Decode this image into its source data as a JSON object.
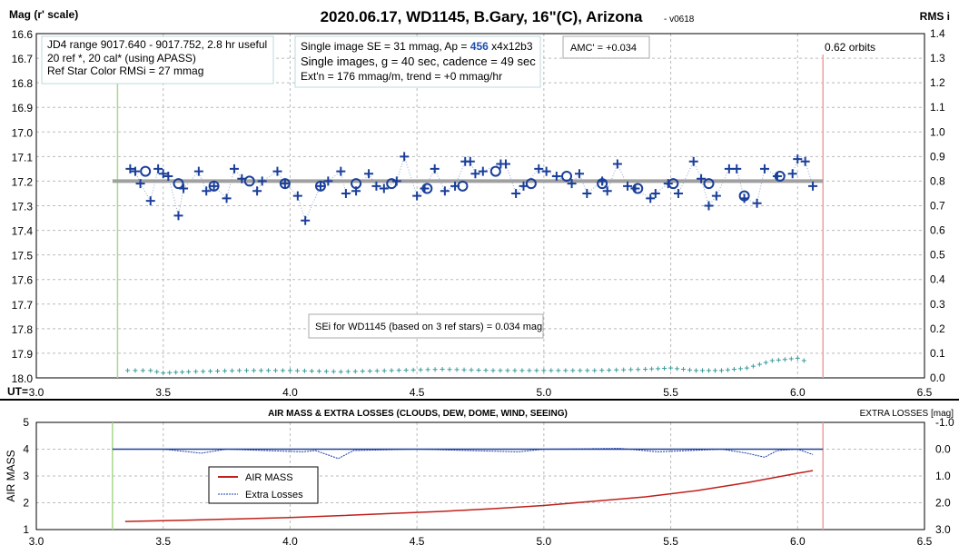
{
  "chart_data": [
    {
      "type": "scatter",
      "title": "2020.06.17, WD1145, B.Gary, 16\"(C), Arizona",
      "version": "- v0618",
      "ylabel": "Mag (r' scale)",
      "y2label": "RMS i",
      "xlabel": "UT=",
      "xlim": [
        3.0,
        6.5
      ],
      "ylim": [
        16.6,
        18.0
      ],
      "y2lim": [
        0,
        1.4
      ],
      "xticks": [
        "3.0",
        "3.5",
        "4.0",
        "4.5",
        "5.0",
        "5.5",
        "6.0",
        "6.5"
      ],
      "yticks": [
        "16.6",
        "16.7",
        "16.8",
        "16.9",
        "17.0",
        "17.1",
        "17.2",
        "17.3",
        "17.4",
        "17.5",
        "17.6",
        "17.7",
        "17.8",
        "17.9",
        "18.0"
      ],
      "y2ticks": [
        "1.4",
        "1.3",
        "1.2",
        "1.1",
        "1.0",
        "0.9",
        "0.8",
        "0.7",
        "0.6",
        "0.5",
        "0.4",
        "0.3",
        "0.2",
        "0.1",
        "0.0"
      ],
      "annotations": {
        "info1": [
          "JD4 range 9017.640 - 9017.752, 2.8 hr useful",
          " 20 ref *, 20 cal* (using APASS)",
          "Ref Star Color RMSi = 27 mmag"
        ],
        "info2a": "Single image SE = 31 mmag, Ap = ",
        "info2ap": "456",
        "info2b": " x4x12b3",
        "info2c": "Single images, g = 40 sec, cadence = 49 sec",
        "info2d": "Ext'n = 176 mmag/m, trend = +0 mmag/hr",
        "amc": "AMC' = +0.034",
        "orbits": "0.62 orbits",
        "sei": "SEi for WD1145 (based on 3 ref stars) = 0.034 mag"
      },
      "ingress_ut": 3.32,
      "egress_ut": 6.1,
      "model_mag": 17.2,
      "singles": [
        [
          3.37,
          17.15
        ],
        [
          3.39,
          17.16
        ],
        [
          3.41,
          17.21
        ],
        [
          3.45,
          17.28
        ],
        [
          3.48,
          17.15
        ],
        [
          3.5,
          17.17
        ],
        [
          3.52,
          17.18
        ],
        [
          3.56,
          17.34
        ],
        [
          3.58,
          17.23
        ],
        [
          3.64,
          17.16
        ],
        [
          3.67,
          17.24
        ],
        [
          3.7,
          17.22
        ],
        [
          3.75,
          17.27
        ],
        [
          3.78,
          17.15
        ],
        [
          3.81,
          17.19
        ],
        [
          3.87,
          17.24
        ],
        [
          3.89,
          17.2
        ],
        [
          3.95,
          17.16
        ],
        [
          3.98,
          17.21
        ],
        [
          4.03,
          17.26
        ],
        [
          4.06,
          17.36
        ],
        [
          4.12,
          17.22
        ],
        [
          4.15,
          17.2
        ],
        [
          4.2,
          17.16
        ],
        [
          4.22,
          17.25
        ],
        [
          4.26,
          17.24
        ],
        [
          4.31,
          17.17
        ],
        [
          4.34,
          17.22
        ],
        [
          4.37,
          17.23
        ],
        [
          4.42,
          17.2
        ],
        [
          4.45,
          17.1
        ],
        [
          4.5,
          17.26
        ],
        [
          4.53,
          17.23
        ],
        [
          4.57,
          17.15
        ],
        [
          4.61,
          17.24
        ],
        [
          4.65,
          17.22
        ],
        [
          4.69,
          17.12
        ],
        [
          4.71,
          17.12
        ],
        [
          4.73,
          17.17
        ],
        [
          4.76,
          17.16
        ],
        [
          4.83,
          17.13
        ],
        [
          4.85,
          17.13
        ],
        [
          4.89,
          17.25
        ],
        [
          4.92,
          17.22
        ],
        [
          4.98,
          17.15
        ],
        [
          5.01,
          17.16
        ],
        [
          5.05,
          17.18
        ],
        [
          5.11,
          17.21
        ],
        [
          5.14,
          17.17
        ],
        [
          5.17,
          17.25
        ],
        [
          5.23,
          17.2
        ],
        [
          5.25,
          17.24
        ],
        [
          5.29,
          17.13
        ],
        [
          5.33,
          17.22
        ],
        [
          5.36,
          17.23
        ],
        [
          5.42,
          17.27
        ],
        [
          5.44,
          17.25
        ],
        [
          5.49,
          17.21
        ],
        [
          5.53,
          17.25
        ],
        [
          5.59,
          17.12
        ],
        [
          5.62,
          17.19
        ],
        [
          5.65,
          17.3
        ],
        [
          5.68,
          17.26
        ],
        [
          5.73,
          17.15
        ],
        [
          5.76,
          17.15
        ],
        [
          5.79,
          17.27
        ],
        [
          5.84,
          17.29
        ],
        [
          5.87,
          17.15
        ],
        [
          5.92,
          17.18
        ],
        [
          5.98,
          17.17
        ],
        [
          6.0,
          17.11
        ],
        [
          6.03,
          17.12
        ],
        [
          6.06,
          17.22
        ]
      ],
      "averages": [
        [
          3.43,
          17.16
        ],
        [
          3.56,
          17.21
        ],
        [
          3.7,
          17.22
        ],
        [
          3.84,
          17.2
        ],
        [
          3.98,
          17.21
        ],
        [
          4.12,
          17.22
        ],
        [
          4.26,
          17.21
        ],
        [
          4.4,
          17.21
        ],
        [
          4.54,
          17.23
        ],
        [
          4.68,
          17.22
        ],
        [
          4.81,
          17.16
        ],
        [
          4.95,
          17.21
        ],
        [
          5.09,
          17.18
        ],
        [
          5.23,
          17.21
        ],
        [
          5.37,
          17.23
        ],
        [
          5.51,
          17.21
        ],
        [
          5.65,
          17.21
        ],
        [
          5.79,
          17.26
        ],
        [
          5.93,
          17.18
        ]
      ],
      "rms": [
        [
          3.36,
          0.03
        ],
        [
          3.45,
          0.03
        ],
        [
          3.5,
          0.02
        ],
        [
          3.6,
          0.025
        ],
        [
          3.8,
          0.03
        ],
        [
          4.0,
          0.03
        ],
        [
          4.2,
          0.025
        ],
        [
          4.4,
          0.03
        ],
        [
          4.6,
          0.035
        ],
        [
          4.8,
          0.03
        ],
        [
          5.0,
          0.03
        ],
        [
          5.2,
          0.03
        ],
        [
          5.4,
          0.035
        ],
        [
          5.5,
          0.04
        ],
        [
          5.6,
          0.03
        ],
        [
          5.7,
          0.03
        ],
        [
          5.8,
          0.04
        ],
        [
          5.9,
          0.07
        ],
        [
          6.0,
          0.08
        ],
        [
          6.05,
          0.06
        ]
      ]
    },
    {
      "type": "line",
      "title": "AIR MASS & EXTRA LOSSES (CLOUDS, DEW, DOME, WIND, SEEING)",
      "ylabel": "AIR MASS",
      "y2label": "EXTRA LOSSES [mag]",
      "xlim": [
        3.0,
        6.5
      ],
      "ylim": [
        1,
        5
      ],
      "y2lim": [
        -1.0,
        3.0
      ],
      "xticks": [
        "3.0",
        "3.5",
        "4.0",
        "4.5",
        "5.0",
        "5.5",
        "6.0",
        "6.5"
      ],
      "yticks": [
        "5",
        "4",
        "3",
        "2",
        "1"
      ],
      "y2ticks": [
        "-1.0",
        "0.0",
        "1.0",
        "2.0",
        "3.0"
      ],
      "legend": [
        "AIR MASS",
        "Extra Losses"
      ],
      "airmass": [
        [
          3.35,
          1.3
        ],
        [
          3.6,
          1.35
        ],
        [
          3.8,
          1.4
        ],
        [
          4.0,
          1.45
        ],
        [
          4.2,
          1.52
        ],
        [
          4.4,
          1.6
        ],
        [
          4.6,
          1.68
        ],
        [
          4.8,
          1.78
        ],
        [
          5.0,
          1.9
        ],
        [
          5.2,
          2.06
        ],
        [
          5.4,
          2.22
        ],
        [
          5.6,
          2.45
        ],
        [
          5.8,
          2.75
        ],
        [
          6.0,
          3.1
        ],
        [
          6.06,
          3.2
        ]
      ],
      "extra_losses": [
        [
          3.35,
          0.0
        ],
        [
          3.5,
          0.0
        ],
        [
          3.55,
          0.05
        ],
        [
          3.65,
          0.15
        ],
        [
          3.75,
          0.0
        ],
        [
          3.9,
          0.05
        ],
        [
          4.05,
          0.1
        ],
        [
          4.1,
          0.05
        ],
        [
          4.19,
          0.35
        ],
        [
          4.25,
          0.05
        ],
        [
          4.5,
          0.0
        ],
        [
          4.9,
          0.1
        ],
        [
          5.0,
          0.0
        ],
        [
          5.3,
          -0.03
        ],
        [
          5.45,
          0.1
        ],
        [
          5.7,
          0.0
        ],
        [
          5.8,
          0.15
        ],
        [
          5.87,
          0.3
        ],
        [
          5.92,
          0.05
        ],
        [
          6.0,
          0.0
        ],
        [
          6.06,
          0.2
        ]
      ]
    }
  ]
}
